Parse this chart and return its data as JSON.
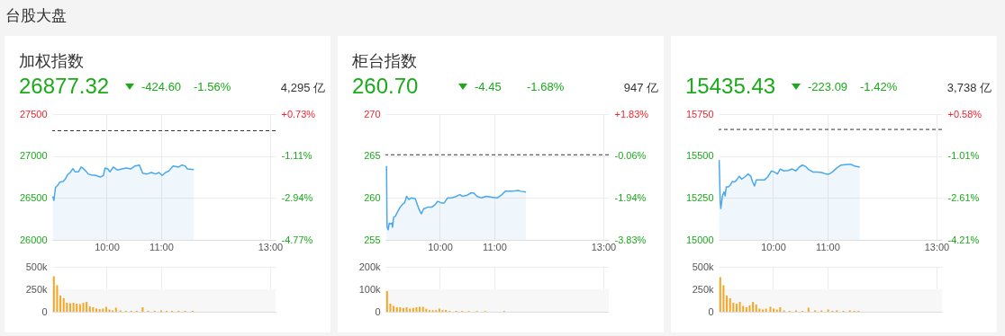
{
  "chart_data": [
    {
      "type": "other",
      "title": "台股大盘"
    },
    {
      "type": "area",
      "title": "加权指数",
      "annotations": [
        "26877.32",
        "-424.60",
        "-1.56%",
        "4,295 亿"
      ],
      "grid": true,
      "xlim": [
        9,
        13.1
      ],
      "xticks": [
        {
          "value": 10,
          "label": "10:00"
        },
        {
          "value": 11,
          "label": "11:00"
        },
        {
          "value": 13,
          "label": "13:00"
        }
      ],
      "ylim": [
        26000,
        27500
      ],
      "yticks": [
        26000,
        26500,
        27000,
        27500
      ],
      "y2lim": [
        -4.77,
        0.73
      ],
      "y2ticks": [
        {
          "value": 0.73,
          "label": "+0.73%"
        },
        {
          "value": -1.11,
          "label": "-1.11%"
        },
        {
          "value": -2.94,
          "label": "-2.94%"
        },
        {
          "value": -4.77,
          "label": "-4.77%"
        }
      ],
      "ref_lines": [
        {
          "axis": "y",
          "value": 27302,
          "color": "#333333",
          "line_style": "dashed"
        }
      ],
      "series": [
        {
          "color": "#4aa8ec",
          "x": [
            9.01,
            9.03,
            9.06,
            9.1,
            9.14,
            9.2,
            9.24,
            9.28,
            9.33,
            9.38,
            9.42,
            9.48,
            9.53,
            9.56,
            9.6,
            9.66,
            9.72,
            9.8,
            9.88,
            9.94,
            9.97,
            10.02,
            10.06,
            10.12,
            10.2,
            10.28,
            10.36,
            10.44,
            10.52,
            10.6,
            10.66,
            10.74,
            10.82,
            10.9,
            10.96,
            11.02,
            11.08,
            11.14,
            11.22,
            11.32,
            11.38,
            11.44,
            11.48,
            11.6
          ],
          "values": [
            26518,
            26471,
            26625,
            26650,
            26689,
            26696,
            26725,
            26775,
            26804,
            26850,
            26811,
            26811,
            26868,
            26857,
            26832,
            26786,
            26775,
            26768,
            26750,
            26768,
            26857,
            26846,
            26811,
            26868,
            26832,
            26846,
            26857,
            26846,
            26882,
            26893,
            26796,
            26786,
            26804,
            26786,
            26804,
            26768,
            26804,
            26821,
            26882,
            26868,
            26893,
            26882,
            26846,
            26839
          ]
        }
      ]
    },
    {
      "type": "bar",
      "grid": true,
      "tick_labels": "y",
      "xlim": [
        9,
        13.1
      ],
      "xticks": [
        {
          "value": 10,
          "label": null
        },
        {
          "value": 11,
          "label": null
        },
        {
          "value": 13,
          "label": null
        }
      ],
      "ylim": [
        0,
        500000
      ],
      "yticks": [
        0,
        {
          "value": 250000,
          "label": "250k"
        },
        {
          "value": 500000,
          "label": "500k"
        }
      ],
      "bands": [
        {
          "axis": "y",
          "from": 0,
          "to": 250000,
          "color": "#f7f7f7"
        }
      ],
      "series": [
        {
          "color": "#f5a623",
          "x": [
            9.03,
            9.09,
            9.15,
            9.21,
            9.27,
            9.33,
            9.39,
            9.45,
            9.51,
            9.57,
            9.63,
            9.69,
            9.75,
            9.81,
            9.87,
            9.93,
            9.99,
            10.05,
            10.11,
            10.17,
            10.25,
            10.35,
            10.45,
            10.55,
            10.66,
            10.76,
            10.88,
            11.0,
            11.1,
            11.2,
            11.32,
            11.44,
            11.58
          ],
          "values": [
            395000,
            295000,
            180000,
            150000,
            100000,
            95000,
            100000,
            90000,
            85000,
            100000,
            110000,
            60000,
            50000,
            35000,
            30000,
            35000,
            55000,
            25000,
            15000,
            45000,
            15000,
            10000,
            10000,
            10000,
            50000,
            10000,
            10000,
            15000,
            10000,
            10000,
            10000,
            10000,
            10000
          ]
        }
      ]
    },
    {
      "type": "area",
      "title": "柜台指数",
      "annotations": [
        "260.70",
        "-4.45",
        "-1.68%",
        "947 亿"
      ],
      "grid": true,
      "xlim": [
        9,
        13.1
      ],
      "xticks": [
        {
          "value": 10,
          "label": "10:00"
        },
        {
          "value": 11,
          "label": "11:00"
        },
        {
          "value": 13,
          "label": "13:00"
        }
      ],
      "ylim": [
        255,
        270
      ],
      "yticks": [
        255,
        260,
        265,
        270
      ],
      "y2lim": [
        -3.83,
        1.83
      ],
      "y2ticks": [
        {
          "value": 1.83,
          "label": "+1.83%"
        },
        {
          "value": -0.06,
          "label": "-0.06%"
        },
        {
          "value": -1.94,
          "label": "-1.94%"
        },
        {
          "value": -3.83,
          "label": "-3.83%"
        }
      ],
      "ref_lines": [
        {
          "axis": "y",
          "value": 265.15,
          "color": "#333333",
          "line_style": "dashed"
        }
      ],
      "series": [
        {
          "color": "#4aa8ec",
          "x": [
            9.02,
            9.03,
            9.05,
            9.07,
            9.1,
            9.12,
            9.13,
            9.15,
            9.18,
            9.22,
            9.26,
            9.32,
            9.35,
            9.39,
            9.43,
            9.47,
            9.55,
            9.58,
            9.62,
            9.66,
            9.7,
            9.78,
            9.85,
            9.91,
            9.96,
            10.03,
            10.08,
            10.14,
            10.22,
            10.3,
            10.37,
            10.41,
            10.49,
            10.57,
            10.62,
            10.68,
            10.76,
            10.85,
            10.95,
            11.05,
            11.14,
            11.2,
            11.33,
            11.43,
            11.49,
            11.58
          ],
          "values": [
            263.8,
            256.6,
            256.2,
            257.0,
            256.9,
            257.0,
            256.5,
            257.7,
            257.8,
            258.3,
            258.8,
            259.3,
            259.4,
            260.2,
            259.8,
            260.0,
            259.9,
            259.3,
            258.6,
            258.1,
            258.7,
            258.9,
            258.9,
            259.2,
            259.6,
            259.4,
            259.4,
            260.0,
            260.0,
            260.2,
            260.4,
            260.2,
            260.3,
            260.6,
            260.6,
            260.2,
            260.0,
            260.2,
            260.1,
            260.0,
            260.4,
            260.8,
            260.8,
            260.9,
            260.8,
            260.7
          ]
        }
      ]
    },
    {
      "type": "bar",
      "grid": true,
      "tick_labels": "y",
      "xlim": [
        9,
        13.1
      ],
      "xticks": [
        {
          "value": 10,
          "label": null
        },
        {
          "value": 11,
          "label": null
        },
        {
          "value": 13,
          "label": null
        }
      ],
      "ylim": [
        0,
        200000
      ],
      "yticks": [
        0,
        {
          "value": 100000,
          "label": "100k"
        },
        {
          "value": 200000,
          "label": "200k"
        }
      ],
      "bands": [
        {
          "axis": "y",
          "from": 0,
          "to": 100000,
          "color": "#f7f7f7"
        }
      ],
      "series": [
        {
          "color": "#f5a623",
          "x": [
            9.03,
            9.09,
            9.15,
            9.21,
            9.27,
            9.33,
            9.39,
            9.45,
            9.51,
            9.57,
            9.63,
            9.69,
            9.75,
            9.81,
            9.87,
            9.93,
            9.99,
            10.05,
            10.11,
            10.18,
            10.3,
            10.41,
            10.53,
            10.68,
            10.83,
            11.18
          ],
          "values": [
            92000,
            36000,
            26000,
            20000,
            20000,
            17000,
            20000,
            14000,
            17000,
            20000,
            22000,
            22000,
            13000,
            7000,
            7000,
            7000,
            14000,
            7000,
            8000,
            4000,
            4000,
            4000,
            3000,
            3000,
            3000,
            3000
          ]
        }
      ]
    },
    {
      "type": "area",
      "annotations": [
        "15435.43",
        "-223.09",
        "-1.42%",
        "3,738 亿"
      ],
      "grid": true,
      "xlim": [
        9,
        13.1
      ],
      "xticks": [
        {
          "value": 10,
          "label": "10:00"
        },
        {
          "value": 11,
          "label": "11:00"
        },
        {
          "value": 13,
          "label": "13:00"
        }
      ],
      "ylim": [
        15000,
        15750
      ],
      "yticks": [
        15000,
        15250,
        15500,
        15750
      ],
      "y2lim": [
        -4.21,
        0.58
      ],
      "y2ticks": [
        {
          "value": 0.58,
          "label": "+0.58%"
        },
        {
          "value": -1.01,
          "label": "-1.01%"
        },
        {
          "value": -2.61,
          "label": "-2.61%"
        },
        {
          "value": -4.21,
          "label": "-4.21%"
        }
      ],
      "ref_lines": [
        {
          "axis": "y",
          "value": 15658.5,
          "color": "#333333",
          "line_style": "dashed"
        }
      ],
      "series": [
        {
          "color": "#4aa8ec",
          "x": [
            9.01,
            9.03,
            9.04,
            9.07,
            9.1,
            9.12,
            9.14,
            9.18,
            9.22,
            9.25,
            9.29,
            9.33,
            9.38,
            9.42,
            9.48,
            9.54,
            9.59,
            9.62,
            9.66,
            9.69,
            9.76,
            9.84,
            9.9,
            9.97,
            10.02,
            10.08,
            10.13,
            10.2,
            10.28,
            10.35,
            10.42,
            10.48,
            10.54,
            10.6,
            10.65,
            10.73,
            10.81,
            10.89,
            10.97,
            11.03,
            11.09,
            11.17,
            11.25,
            11.37,
            11.43,
            11.49,
            11.59
          ],
          "values": [
            15477,
            15223,
            15187,
            15262,
            15286,
            15262,
            15316,
            15316,
            15330,
            15348,
            15345,
            15357,
            15380,
            15362,
            15375,
            15393,
            15380,
            15348,
            15321,
            15357,
            15357,
            15357,
            15375,
            15411,
            15405,
            15393,
            15423,
            15411,
            15414,
            15423,
            15411,
            15434,
            15446,
            15437,
            15420,
            15405,
            15405,
            15402,
            15393,
            15393,
            15405,
            15429,
            15446,
            15450,
            15450,
            15441,
            15434
          ]
        }
      ]
    },
    {
      "type": "bar",
      "grid": true,
      "tick_labels": "y",
      "xlim": [
        9,
        13.1
      ],
      "xticks": [
        {
          "value": 10,
          "label": null
        },
        {
          "value": 11,
          "label": null
        },
        {
          "value": 13,
          "label": null
        }
      ],
      "ylim": [
        0,
        500000
      ],
      "yticks": [
        0,
        {
          "value": 250000,
          "label": "250k"
        },
        {
          "value": 500000,
          "label": "500k"
        }
      ],
      "bands": [
        {
          "axis": "y",
          "from": 0,
          "to": 250000,
          "color": "#f7f7f7"
        }
      ],
      "series": [
        {
          "color": "#f5a623",
          "x": [
            9.03,
            9.09,
            9.15,
            9.21,
            9.27,
            9.33,
            9.39,
            9.45,
            9.51,
            9.57,
            9.63,
            9.69,
            9.75,
            9.81,
            9.87,
            9.95,
            10.01,
            10.07,
            10.13,
            10.2,
            10.3,
            10.42,
            10.54,
            10.65,
            10.77,
            10.89,
            11.01,
            11.09,
            11.17,
            11.29,
            11.41,
            11.49,
            11.57
          ],
          "values": [
            385000,
            295000,
            180000,
            150000,
            100000,
            90000,
            110000,
            65000,
            50000,
            70000,
            110000,
            80000,
            35000,
            25000,
            35000,
            55000,
            35000,
            25000,
            50000,
            15000,
            10000,
            15000,
            10000,
            45000,
            15000,
            15000,
            25000,
            10000,
            15000,
            10000,
            15000,
            10000,
            10000
          ]
        }
      ]
    }
  ]
}
